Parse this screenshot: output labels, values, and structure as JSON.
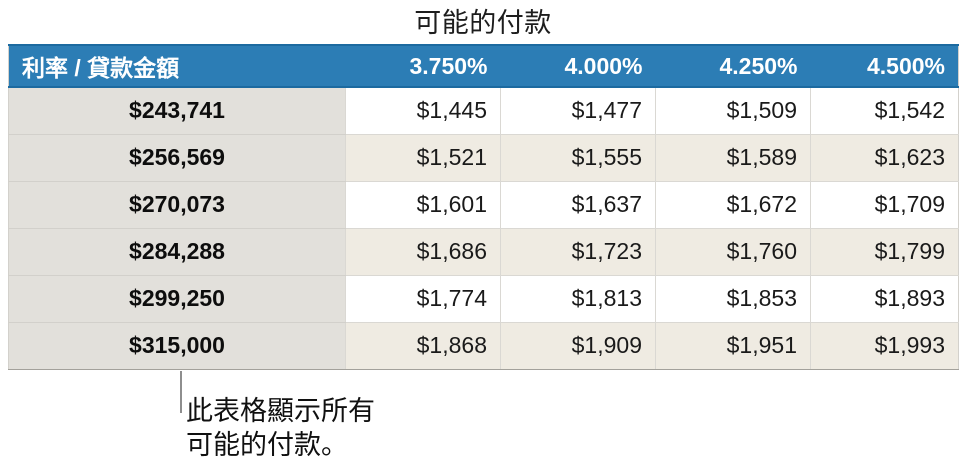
{
  "title": "可能的付款",
  "colors": {
    "header_blue": "#2c7db5",
    "header_blue_border": "#1c6aa0",
    "row_header_bg": "#e2e0db",
    "stripe_cream": "#efebe2",
    "stripe_white": "#ffffff",
    "grid_line": "#dad8d3",
    "callout_line": "#8e8e8e"
  },
  "callout": {
    "line1": "此表格顯示所有",
    "line2": "可能的付款。"
  },
  "chart_data": {
    "type": "table",
    "title": "可能的付款",
    "corner_header": "利率 / 貸款金額",
    "column_headers": [
      "3.750%",
      "4.000%",
      "4.250%",
      "4.500%"
    ],
    "row_headers": [
      "$243,741",
      "$256,569",
      "$270,073",
      "$284,288",
      "$299,250",
      "$315,000"
    ],
    "rows": [
      [
        "$1,445",
        "$1,477",
        "$1,509",
        "$1,542"
      ],
      [
        "$1,521",
        "$1,555",
        "$1,589",
        "$1,623"
      ],
      [
        "$1,601",
        "$1,637",
        "$1,672",
        "$1,709"
      ],
      [
        "$1,686",
        "$1,723",
        "$1,760",
        "$1,799"
      ],
      [
        "$1,774",
        "$1,813",
        "$1,853",
        "$1,893"
      ],
      [
        "$1,868",
        "$1,909",
        "$1,951",
        "$1,993"
      ]
    ],
    "annotation": "此表格顯示所有可能的付款。"
  }
}
